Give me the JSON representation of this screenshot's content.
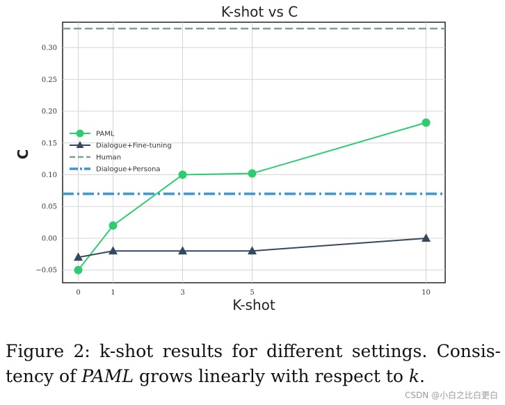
{
  "chart_data": {
    "type": "line",
    "title": "K-shot vs C",
    "xlabel": "K-shot",
    "ylabel": "C",
    "x": [
      0,
      1,
      3,
      5,
      10
    ],
    "xticks": [
      "0",
      "1",
      "3",
      "5",
      "10"
    ],
    "yticks": [
      "−0.05",
      "0.00",
      "0.05",
      "0.10",
      "0.15",
      "0.20",
      "0.25",
      "0.30"
    ],
    "ylim": [
      -0.07,
      0.34
    ],
    "xlim": [
      -0.45,
      10.55
    ],
    "grid": true,
    "legend_position": "center-left",
    "series": [
      {
        "name": "PAML",
        "values": [
          -0.05,
          0.02,
          0.1,
          0.102,
          0.182
        ],
        "color": "#2ecc71",
        "marker": "circle"
      },
      {
        "name": "Dialogue+Fine-tuning",
        "values": [
          -0.03,
          -0.02,
          -0.02,
          -0.02,
          0.0
        ],
        "color": "#34495e",
        "marker": "triangle"
      }
    ],
    "reference_lines": [
      {
        "name": "Human",
        "y": 0.33,
        "color": "#7f9f8f",
        "style": "dashed"
      },
      {
        "name": "Dialogue+Persona",
        "y": 0.07,
        "color": "#3498db",
        "style": "dashdot"
      }
    ]
  },
  "caption": {
    "prefix": "Figure 2:  k-shot results for different settings.  Consis-tency of ",
    "emphasis": "PAML",
    "middle": " grows linearly with respect to ",
    "var": "k",
    "suffix": "."
  },
  "watermark": "CSDN @小白之比白更白"
}
